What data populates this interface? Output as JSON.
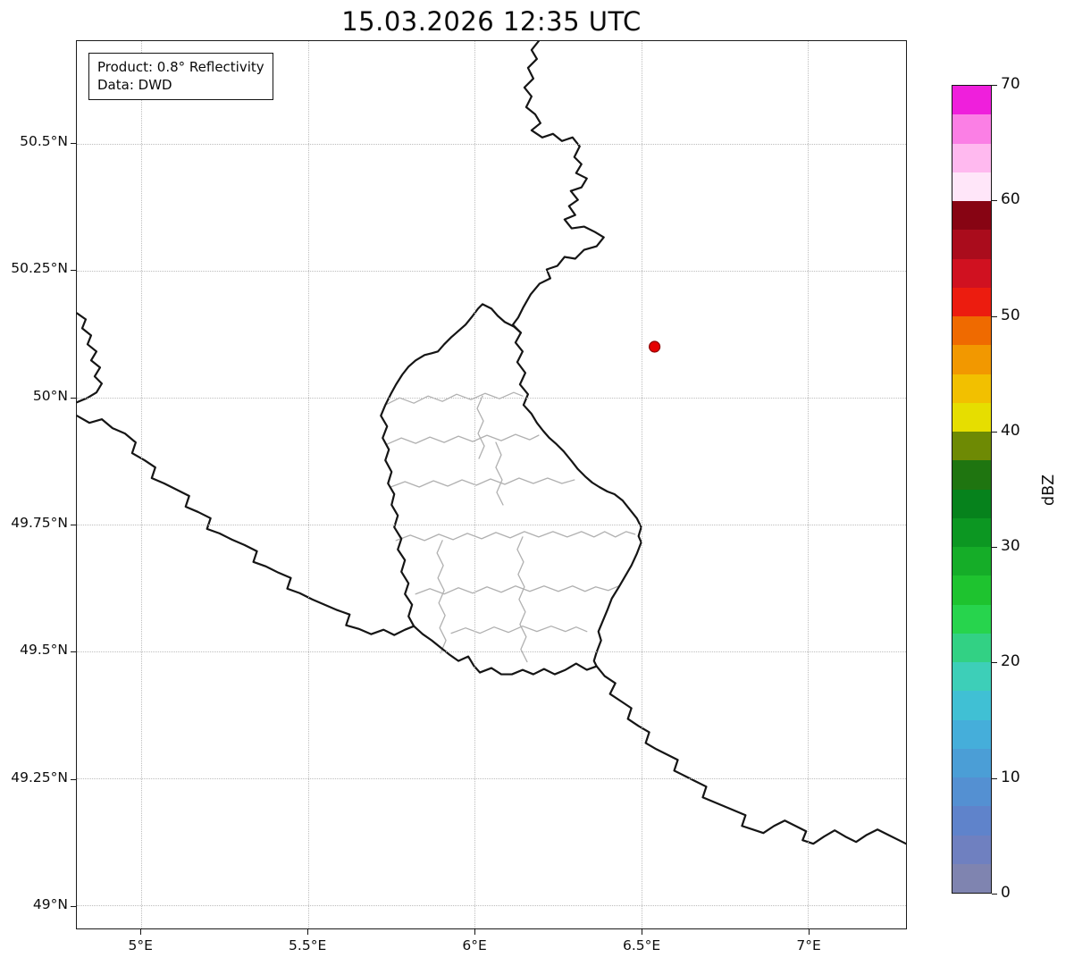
{
  "chart_data": {
    "type": "map",
    "title": "15.03.2026 12:35 UTC",
    "annotations": {
      "product": "Product: 0.8° Reflectivity",
      "data_source": "Data: DWD"
    },
    "x_axis": {
      "tick_values": [
        5,
        5.5,
        6,
        6.5,
        7
      ],
      "tick_labels": [
        "5°E",
        "5.5°E",
        "6°E",
        "6.5°E",
        "7°E"
      ],
      "range_lon": [
        4.807,
        7.294
      ]
    },
    "y_axis": {
      "tick_values": [
        49,
        49.25,
        49.5,
        49.75,
        50,
        50.25,
        50.5
      ],
      "tick_labels": [
        "49°N",
        "49.25°N",
        "49.5°N",
        "49.75°N",
        "50°N",
        "50.25°N",
        "50.5°N"
      ],
      "range_lat": [
        48.954,
        50.702
      ]
    },
    "grid": {
      "visible": true,
      "style": "dotted"
    },
    "marker": {
      "name": "radar-site",
      "lon": 6.54,
      "lat": 50.1,
      "color": "#e50000",
      "edge_color": "#8b0000"
    },
    "colorbar": {
      "label": "dBZ",
      "min": 0,
      "max": 70,
      "tick_values": [
        0,
        10,
        20,
        30,
        40,
        50,
        60,
        70
      ],
      "segment_colors_bottom_to_top": [
        "#7f84b0",
        "#6f80c0",
        "#5f83cb",
        "#5490d2",
        "#4b9ed6",
        "#45aeda",
        "#40c0d4",
        "#3dcfb8",
        "#32d184",
        "#27d44d",
        "#1ec32f",
        "#15ad28",
        "#0c9722",
        "#06821c",
        "#1f7510",
        "#6e8a04",
        "#e6de00",
        "#f2c000",
        "#f29800",
        "#ef6a00",
        "#ec1c0f",
        "#d01120",
        "#aa0c1c",
        "#870413",
        "#ffe6f9",
        "#ffb9ef",
        "#fb7fe5",
        "#ef1fdc"
      ]
    },
    "map_layers": [
      "country-borders",
      "luxembourg-district-borders"
    ]
  }
}
